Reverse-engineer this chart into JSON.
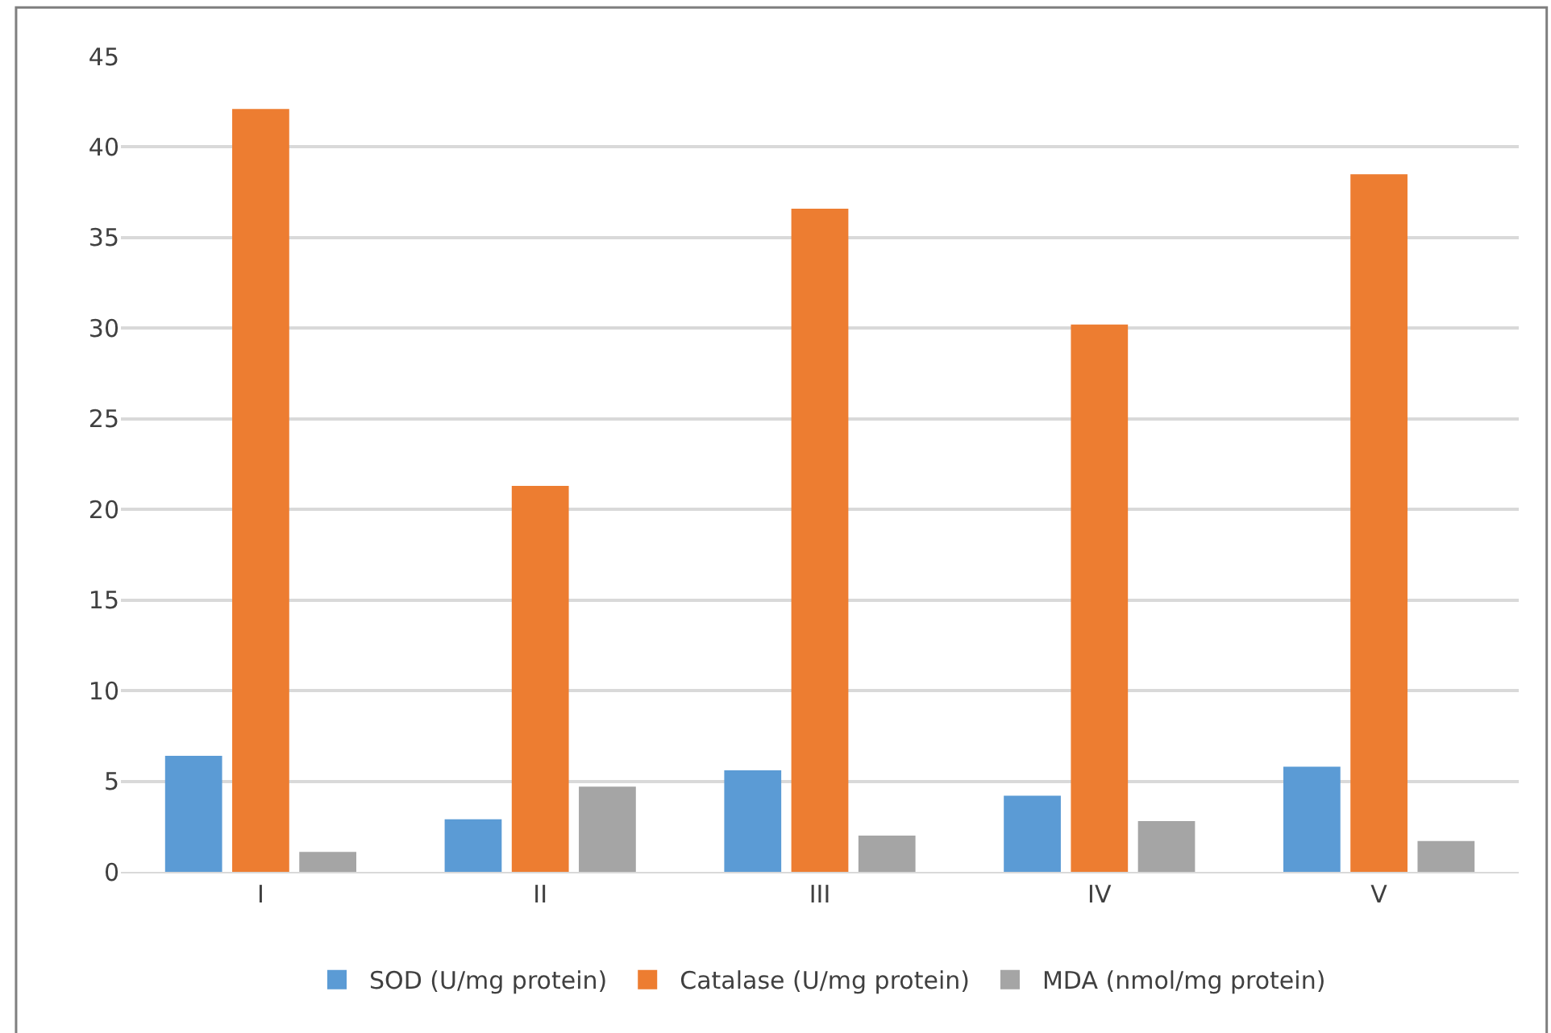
{
  "chart_data": {
    "type": "bar",
    "categories": [
      "I",
      "II",
      "III",
      "IV",
      "V"
    ],
    "series": [
      {
        "name": "SOD (U/mg protein)",
        "color": "#5b9bd5",
        "values": [
          6.4,
          2.9,
          5.6,
          4.2,
          5.8
        ]
      },
      {
        "name": "Catalase (U/mg protein)",
        "color": "#ed7d31",
        "values": [
          42.1,
          21.3,
          36.6,
          30.2,
          38.5
        ]
      },
      {
        "name": "MDA (nmol/mg protein)",
        "color": "#a5a5a5",
        "values": [
          1.1,
          4.7,
          2.0,
          2.8,
          1.7
        ]
      }
    ],
    "ylim": [
      0,
      45
    ],
    "yticks": [
      0,
      5,
      10,
      15,
      20,
      25,
      30,
      35,
      40,
      45
    ],
    "grid": "y",
    "legend": "bottom"
  }
}
